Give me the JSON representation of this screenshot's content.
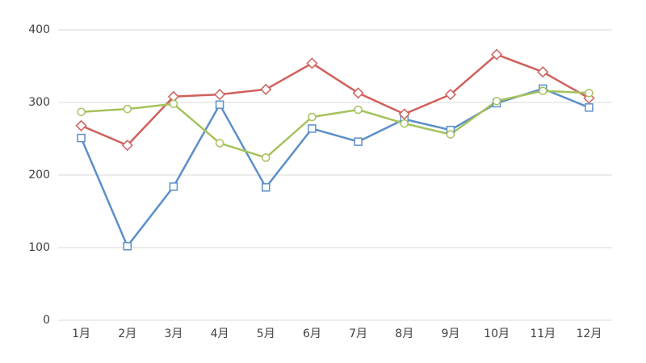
{
  "chart_data": {
    "type": "line",
    "categories": [
      "1月",
      "2月",
      "3月",
      "4月",
      "5月",
      "6月",
      "7月",
      "8月",
      "9月",
      "10月",
      "11月",
      "12月"
    ],
    "series": [
      {
        "color": "#5b8fc9",
        "marker": "square",
        "values": [
          251,
          102,
          184,
          297,
          183,
          264,
          246,
          277,
          262,
          299,
          319,
          293
        ]
      },
      {
        "color": "#d0605c",
        "marker": "diamond",
        "values": [
          268,
          241,
          308,
          311,
          318,
          354,
          313,
          284,
          311,
          366,
          342,
          306
        ]
      },
      {
        "color": "#a5c25c",
        "marker": "circle",
        "values": [
          287,
          291,
          298,
          244,
          224,
          280,
          290,
          271,
          256,
          302,
          316,
          313
        ]
      }
    ],
    "ylim": [
      0,
      400
    ],
    "yticks": [
      0,
      100,
      200,
      300,
      400
    ],
    "grid": true
  }
}
